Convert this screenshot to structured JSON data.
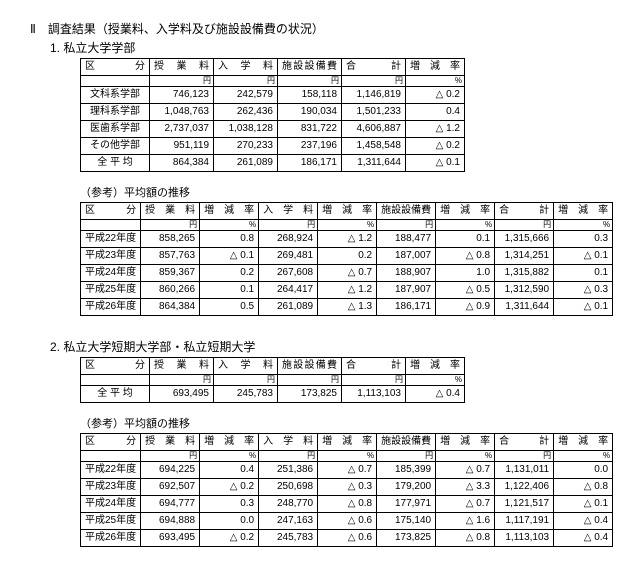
{
  "header": {
    "main": "Ⅱ　調査結果（授業料、入学料及び施設設備費の状況）",
    "sub1": "1. 私立大学学部",
    "ref": "（参考）平均額の推移",
    "sub2": "2. 私立大学短期大学部・私立短期大学"
  },
  "labels": {
    "category": "区　　分",
    "tuition": "授　業　料",
    "entry": "入　学　料",
    "facility": "施設設備費",
    "total": "合　　　計",
    "change": "増　減　率",
    "yen": "円",
    "pct": "%"
  },
  "table1": {
    "rows": [
      {
        "cat": "文科系学部",
        "t": "746,123",
        "e": "242,579",
        "f": "158,118",
        "tot": "1,146,819",
        "chg": "△ 0.2"
      },
      {
        "cat": "理科系学部",
        "t": "1,048,763",
        "e": "262,436",
        "f": "190,034",
        "tot": "1,501,233",
        "chg": "0.4"
      },
      {
        "cat": "医歯系学部",
        "t": "2,737,037",
        "e": "1,038,128",
        "f": "831,722",
        "tot": "4,606,887",
        "chg": "△ 1.2"
      },
      {
        "cat": "その他学部",
        "t": "951,119",
        "e": "270,233",
        "f": "237,196",
        "tot": "1,458,548",
        "chg": "△ 0.2"
      },
      {
        "cat": "全 平 均",
        "t": "864,384",
        "e": "261,089",
        "f": "186,171",
        "tot": "1,311,644",
        "chg": "△ 0.1"
      }
    ]
  },
  "table2": {
    "rows": [
      {
        "cat": "平成22年度",
        "t": "858,265",
        "tr": "0.8",
        "e": "268,924",
        "er": "△ 1.2",
        "f": "188,477",
        "fr": "0.1",
        "tot": "1,315,666",
        "totr": "0.3"
      },
      {
        "cat": "平成23年度",
        "t": "857,763",
        "tr": "△ 0.1",
        "e": "269,481",
        "er": "0.2",
        "f": "187,007",
        "fr": "△ 0.8",
        "tot": "1,314,251",
        "totr": "△ 0.1"
      },
      {
        "cat": "平成24年度",
        "t": "859,367",
        "tr": "0.2",
        "e": "267,608",
        "er": "△ 0.7",
        "f": "188,907",
        "fr": "1.0",
        "tot": "1,315,882",
        "totr": "0.1"
      },
      {
        "cat": "平成25年度",
        "t": "860,266",
        "tr": "0.1",
        "e": "264,417",
        "er": "△ 1.2",
        "f": "187,907",
        "fr": "△ 0.5",
        "tot": "1,312,590",
        "totr": "△ 0.3"
      },
      {
        "cat": "平成26年度",
        "t": "864,384",
        "tr": "0.5",
        "e": "261,089",
        "er": "△ 1.3",
        "f": "186,171",
        "fr": "△ 0.9",
        "tot": "1,311,644",
        "totr": "△ 0.1"
      }
    ]
  },
  "table3": {
    "rows": [
      {
        "cat": "全 平 均",
        "t": "693,495",
        "e": "245,783",
        "f": "173,825",
        "tot": "1,113,103",
        "chg": "△ 0.4"
      }
    ]
  },
  "table4": {
    "rows": [
      {
        "cat": "平成22年度",
        "t": "694,225",
        "tr": "0.4",
        "e": "251,386",
        "er": "△ 0.7",
        "f": "185,399",
        "fr": "△ 0.7",
        "tot": "1,131,011",
        "totr": "0.0"
      },
      {
        "cat": "平成23年度",
        "t": "692,507",
        "tr": "△ 0.2",
        "e": "250,698",
        "er": "△ 0.3",
        "f": "179,200",
        "fr": "△ 3.3",
        "tot": "1,122,406",
        "totr": "△ 0.8"
      },
      {
        "cat": "平成24年度",
        "t": "694,777",
        "tr": "0.3",
        "e": "248,770",
        "er": "△ 0.8",
        "f": "177,971",
        "fr": "△ 0.7",
        "tot": "1,121,517",
        "totr": "△ 0.1"
      },
      {
        "cat": "平成25年度",
        "t": "694,888",
        "tr": "0.0",
        "e": "247,163",
        "er": "△ 0.6",
        "f": "175,140",
        "fr": "△ 1.6",
        "tot": "1,117,191",
        "totr": "△ 0.4"
      },
      {
        "cat": "平成26年度",
        "t": "693,495",
        "tr": "△ 0.2",
        "e": "245,783",
        "er": "△ 0.6",
        "f": "173,825",
        "fr": "△ 0.8",
        "tot": "1,113,103",
        "totr": "△ 0.4"
      }
    ]
  }
}
